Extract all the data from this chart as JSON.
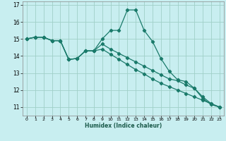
{
  "title": "",
  "xlabel": "Humidex (Indice chaleur)",
  "ylabel": "",
  "bg_color": "#c8eef0",
  "grid_color": "#a0d0c8",
  "line_color": "#1a7a6a",
  "xlim": [
    -0.5,
    23.5
  ],
  "ylim": [
    10.5,
    17.2
  ],
  "yticks": [
    11,
    12,
    13,
    14,
    15,
    16,
    17
  ],
  "xticks": [
    0,
    1,
    2,
    3,
    4,
    5,
    6,
    7,
    8,
    9,
    10,
    11,
    12,
    13,
    14,
    15,
    16,
    17,
    18,
    19,
    20,
    21,
    22,
    23
  ],
  "series": [
    [
      15.0,
      15.1,
      15.1,
      14.9,
      14.9,
      13.8,
      13.85,
      14.3,
      14.3,
      15.0,
      15.5,
      15.5,
      16.7,
      16.7,
      15.5,
      14.85,
      13.85,
      13.1,
      12.6,
      12.5,
      12.1,
      11.5,
      11.15,
      11.0
    ],
    [
      15.0,
      15.1,
      15.1,
      14.9,
      14.9,
      13.8,
      13.85,
      14.3,
      14.3,
      14.7,
      14.4,
      14.15,
      13.9,
      13.65,
      13.4,
      13.15,
      12.9,
      12.65,
      12.55,
      12.3,
      12.1,
      11.6,
      11.2,
      11.0
    ],
    [
      15.0,
      15.1,
      15.1,
      14.9,
      14.9,
      13.8,
      13.85,
      14.3,
      14.3,
      14.4,
      14.1,
      13.8,
      13.5,
      13.2,
      12.95,
      12.65,
      12.4,
      12.2,
      12.0,
      11.8,
      11.6,
      11.4,
      11.2,
      11.0
    ]
  ],
  "marker": "D",
  "markersize": 2.2,
  "linewidth": 0.9
}
